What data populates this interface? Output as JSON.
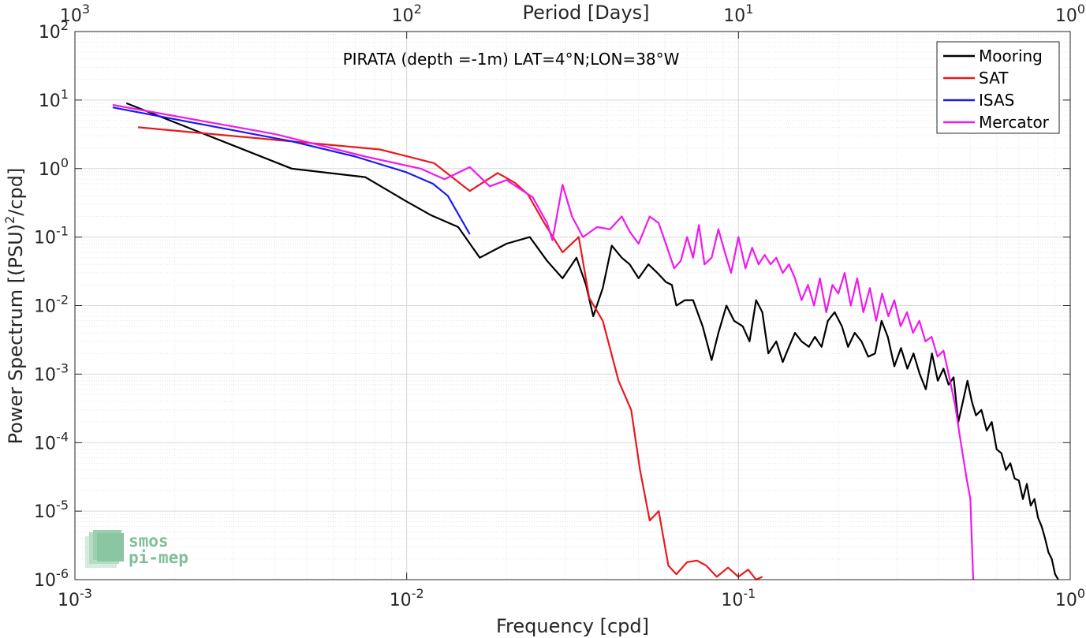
{
  "chart_data": {
    "type": "line",
    "title": "PIRATA (depth =-1m) LAT=4°N;LON=38°W",
    "xlabel": "Frequency [cpd]",
    "ylabel_main": "Power Spectrum [(PSU)",
    "ylabel_sup": "2",
    "ylabel_tail": "/cpd]",
    "top_xlabel": "Period [Days]",
    "x_scale": "log",
    "y_scale": "log",
    "xlim": [
      0.001,
      1
    ],
    "ylim": [
      1e-06,
      100
    ],
    "grid": true,
    "legend_position": "top-right",
    "x_ticks": [
      {
        "base": "10",
        "exp": "-3"
      },
      {
        "base": "10",
        "exp": "-2"
      },
      {
        "base": "10",
        "exp": "-1"
      },
      {
        "base": "10",
        "exp": "0"
      }
    ],
    "y_ticks": [
      {
        "base": "10",
        "exp": "-6"
      },
      {
        "base": "10",
        "exp": "-5"
      },
      {
        "base": "10",
        "exp": "-4"
      },
      {
        "base": "10",
        "exp": "-3"
      },
      {
        "base": "10",
        "exp": "-2"
      },
      {
        "base": "10",
        "exp": "-1"
      },
      {
        "base": "10",
        "exp": "0"
      },
      {
        "base": "10",
        "exp": "1"
      },
      {
        "base": "10",
        "exp": "2"
      }
    ],
    "top_ticks": [
      {
        "base": "10",
        "exp": "3"
      },
      {
        "base": "10",
        "exp": "2"
      },
      {
        "base": "10",
        "exp": "1"
      },
      {
        "base": "10",
        "exp": "0"
      }
    ],
    "series": [
      {
        "name": "Mooring",
        "color": "#000000",
        "points": [
          [
            0.00143,
            9.0
          ],
          [
            0.0045,
            1.0
          ],
          [
            0.0075,
            0.75
          ],
          [
            0.01,
            0.33
          ],
          [
            0.0118,
            0.21
          ],
          [
            0.0143,
            0.14
          ],
          [
            0.0166,
            0.05
          ],
          [
            0.02,
            0.08
          ],
          [
            0.0235,
            0.1
          ],
          [
            0.0265,
            0.045
          ],
          [
            0.0295,
            0.025
          ],
          [
            0.0325,
            0.05
          ],
          [
            0.0347,
            0.02
          ],
          [
            0.0365,
            0.007
          ],
          [
            0.039,
            0.018
          ],
          [
            0.0415,
            0.075
          ],
          [
            0.0445,
            0.05
          ],
          [
            0.047,
            0.04
          ],
          [
            0.05,
            0.025
          ],
          [
            0.0535,
            0.04
          ],
          [
            0.057,
            0.03
          ],
          [
            0.0605,
            0.022
          ],
          [
            0.063,
            0.02
          ],
          [
            0.065,
            0.01
          ],
          [
            0.069,
            0.012
          ],
          [
            0.073,
            0.012
          ],
          [
            0.078,
            0.005
          ],
          [
            0.083,
            0.0016
          ],
          [
            0.087,
            0.004
          ],
          [
            0.092,
            0.01
          ],
          [
            0.097,
            0.006
          ],
          [
            0.103,
            0.005
          ],
          [
            0.108,
            0.003
          ],
          [
            0.113,
            0.012
          ],
          [
            0.118,
            0.008
          ],
          [
            0.123,
            0.002
          ],
          [
            0.13,
            0.003
          ],
          [
            0.136,
            0.0015
          ],
          [
            0.142,
            0.0025
          ],
          [
            0.148,
            0.004
          ],
          [
            0.155,
            0.003
          ],
          [
            0.163,
            0.0025
          ],
          [
            0.17,
            0.0035
          ],
          [
            0.178,
            0.0025
          ],
          [
            0.186,
            0.006
          ],
          [
            0.195,
            0.008
          ],
          [
            0.205,
            0.005
          ],
          [
            0.214,
            0.0025
          ],
          [
            0.224,
            0.004
          ],
          [
            0.235,
            0.003
          ],
          [
            0.246,
            0.0018
          ],
          [
            0.258,
            0.002
          ],
          [
            0.27,
            0.006
          ],
          [
            0.282,
            0.0035
          ],
          [
            0.295,
            0.0013
          ],
          [
            0.309,
            0.0024
          ],
          [
            0.323,
            0.0012
          ],
          [
            0.337,
            0.002
          ],
          [
            0.352,
            0.001
          ],
          [
            0.367,
            0.0006
          ],
          [
            0.383,
            0.002
          ],
          [
            0.399,
            0.0008
          ],
          [
            0.415,
            0.0012
          ],
          [
            0.43,
            0.0007
          ],
          [
            0.445,
            0.0009
          ],
          [
            0.46,
            0.0002
          ],
          [
            0.475,
            0.0004
          ],
          [
            0.49,
            0.0008
          ],
          [
            0.505,
            0.0004
          ],
          [
            0.52,
            0.00025
          ],
          [
            0.54,
            0.0003
          ],
          [
            0.56,
            0.00015
          ],
          [
            0.58,
            0.0002
          ],
          [
            0.6,
            8e-05
          ],
          [
            0.62,
            7e-05
          ],
          [
            0.64,
            4e-05
          ],
          [
            0.66,
            5e-05
          ],
          [
            0.68,
            3e-05
          ],
          [
            0.7,
            2.8e-05
          ],
          [
            0.72,
            1.5e-05
          ],
          [
            0.74,
            2.5e-05
          ],
          [
            0.76,
            1.2e-05
          ],
          [
            0.78,
            1.5e-05
          ],
          [
            0.8,
            8e-06
          ],
          [
            0.82,
            6e-06
          ],
          [
            0.84,
            4e-06
          ],
          [
            0.86,
            2.5e-06
          ],
          [
            0.88,
            2e-06
          ],
          [
            0.9,
            1.2e-06
          ],
          [
            0.92,
            1e-06
          ]
        ]
      },
      {
        "name": "SAT",
        "color": "#e8191f",
        "points": [
          [
            0.00155,
            4.0
          ],
          [
            0.0083,
            1.9
          ],
          [
            0.0121,
            1.2
          ],
          [
            0.0155,
            0.47
          ],
          [
            0.0188,
            0.86
          ],
          [
            0.0212,
            0.62
          ],
          [
            0.0232,
            0.42
          ],
          [
            0.026,
            0.16
          ],
          [
            0.0295,
            0.06
          ],
          [
            0.033,
            0.1
          ],
          [
            0.0355,
            0.013
          ],
          [
            0.039,
            0.006
          ],
          [
            0.0435,
            0.0008
          ],
          [
            0.0475,
            0.0003
          ],
          [
            0.0505,
            4e-05
          ],
          [
            0.054,
            7.3e-06
          ],
          [
            0.0575,
            1e-05
          ],
          [
            0.0615,
            1.6e-06
          ],
          [
            0.065,
            1.2e-06
          ],
          [
            0.07,
            1.8e-06
          ],
          [
            0.075,
            1.9e-06
          ],
          [
            0.08,
            1.6e-06
          ],
          [
            0.086,
            1.1e-06
          ],
          [
            0.093,
            1.5e-06
          ],
          [
            0.1,
            1.1e-06
          ],
          [
            0.107,
            1.4e-06
          ],
          [
            0.113,
            1e-06
          ],
          [
            0.118,
            1.1e-06
          ]
        ]
      },
      {
        "name": "ISAS",
        "color": "#1a1af0",
        "points": [
          [
            0.0013,
            7.8
          ],
          [
            0.0045,
            2.5
          ],
          [
            0.007,
            1.5
          ],
          [
            0.01,
            0.88
          ],
          [
            0.012,
            0.6
          ],
          [
            0.0133,
            0.4
          ],
          [
            0.0155,
            0.11
          ]
        ]
      },
      {
        "name": "Mercator",
        "color": "#f018f0",
        "points": [
          [
            0.0013,
            8.5
          ],
          [
            0.004,
            3.2
          ],
          [
            0.0075,
            1.5
          ],
          [
            0.011,
            1.0
          ],
          [
            0.013,
            0.7
          ],
          [
            0.0155,
            1.05
          ],
          [
            0.0178,
            0.55
          ],
          [
            0.02,
            0.68
          ],
          [
            0.024,
            0.38
          ],
          [
            0.0265,
            0.16
          ],
          [
            0.0275,
            0.09
          ],
          [
            0.0295,
            0.58
          ],
          [
            0.0315,
            0.2
          ],
          [
            0.034,
            0.1
          ],
          [
            0.0375,
            0.14
          ],
          [
            0.041,
            0.13
          ],
          [
            0.0445,
            0.2
          ],
          [
            0.047,
            0.12
          ],
          [
            0.05,
            0.08
          ],
          [
            0.054,
            0.2
          ],
          [
            0.0575,
            0.16
          ],
          [
            0.061,
            0.07
          ],
          [
            0.064,
            0.035
          ],
          [
            0.067,
            0.045
          ],
          [
            0.07,
            0.1
          ],
          [
            0.073,
            0.05
          ],
          [
            0.076,
            0.15
          ],
          [
            0.079,
            0.04
          ],
          [
            0.083,
            0.05
          ],
          [
            0.087,
            0.13
          ],
          [
            0.091,
            0.06
          ],
          [
            0.095,
            0.03
          ],
          [
            0.1,
            0.1
          ],
          [
            0.105,
            0.035
          ],
          [
            0.11,
            0.07
          ],
          [
            0.115,
            0.04
          ],
          [
            0.12,
            0.055
          ],
          [
            0.125,
            0.04
          ],
          [
            0.13,
            0.05
          ],
          [
            0.136,
            0.03
          ],
          [
            0.142,
            0.04
          ],
          [
            0.148,
            0.025
          ],
          [
            0.155,
            0.012
          ],
          [
            0.162,
            0.02
          ],
          [
            0.169,
            0.01
          ],
          [
            0.176,
            0.025
          ],
          [
            0.184,
            0.008
          ],
          [
            0.192,
            0.02
          ],
          [
            0.2,
            0.015
          ],
          [
            0.209,
            0.03
          ],
          [
            0.218,
            0.01
          ],
          [
            0.228,
            0.025
          ],
          [
            0.238,
            0.008
          ],
          [
            0.249,
            0.018
          ],
          [
            0.26,
            0.006
          ],
          [
            0.271,
            0.015
          ],
          [
            0.283,
            0.007
          ],
          [
            0.295,
            0.012
          ],
          [
            0.308,
            0.005
          ],
          [
            0.322,
            0.008
          ],
          [
            0.336,
            0.004
          ],
          [
            0.351,
            0.006
          ],
          [
            0.366,
            0.003
          ],
          [
            0.382,
            0.0035
          ],
          [
            0.398,
            0.0018
          ],
          [
            0.415,
            0.0022
          ],
          [
            0.432,
            0.0009
          ],
          [
            0.45,
            0.00035
          ],
          [
            0.468,
            0.0001
          ],
          [
            0.487,
            3e-05
          ],
          [
            0.5,
            1.5e-05
          ],
          [
            0.51,
            1e-06
          ]
        ]
      }
    ]
  },
  "logo": {
    "line1": "smos",
    "line2": "pi-mep"
  }
}
